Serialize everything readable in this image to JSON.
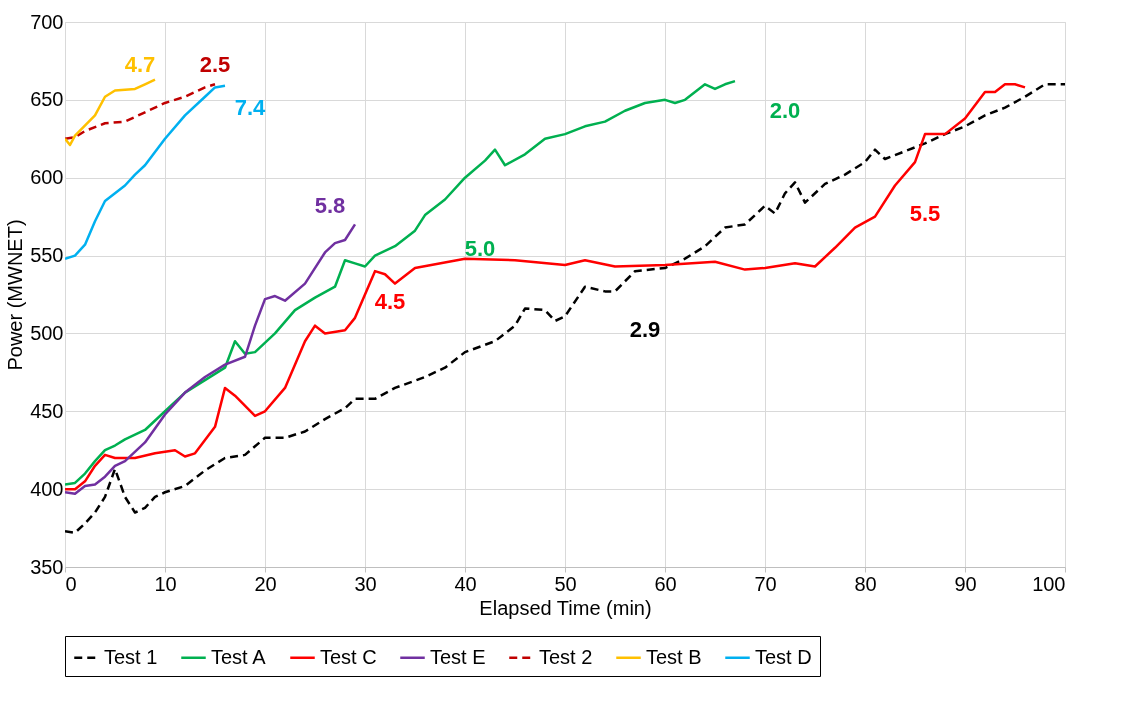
{
  "chart_data": {
    "type": "line",
    "xlabel": "Elapsed Time (min)",
    "ylabel": "Power (MWNET)",
    "xlim": [
      0,
      100
    ],
    "xticks": [
      0,
      10,
      20,
      30,
      40,
      50,
      60,
      70,
      80,
      90,
      100
    ],
    "ylim": [
      350,
      700
    ],
    "yticks": [
      350,
      400,
      450,
      500,
      550,
      600,
      650,
      700
    ],
    "grid": true,
    "legend": "bottom",
    "marker": "none",
    "series": [
      {
        "name": "Test 1",
        "color": "#000000",
        "line_style": "dashed",
        "x": [
          0,
          1,
          2,
          3,
          4,
          5,
          6,
          7,
          8,
          9,
          10,
          12,
          14,
          16,
          18,
          20,
          22,
          24,
          26,
          28,
          29,
          31,
          33,
          36,
          38,
          40,
          43,
          45,
          46,
          48,
          49,
          50,
          52,
          54,
          55,
          57,
          60,
          62,
          64,
          66,
          68,
          70,
          71,
          72,
          73,
          74,
          76,
          78,
          80,
          81,
          82,
          84,
          86,
          88,
          90,
          92,
          94,
          96,
          98,
          100
        ],
        "values": [
          373,
          372,
          378,
          385,
          395,
          413,
          395,
          385,
          388,
          395,
          398,
          402,
          412,
          420,
          422,
          433,
          433,
          437,
          445,
          452,
          458,
          458,
          465,
          472,
          478,
          488,
          495,
          505,
          516,
          515,
          508,
          511,
          530,
          527,
          527,
          540,
          542,
          548,
          556,
          568,
          570,
          582,
          577,
          590,
          597,
          584,
          596,
          602,
          610,
          618,
          612,
          617,
          622,
          628,
          633,
          640,
          645,
          652,
          660,
          660
        ]
      },
      {
        "name": "Test A",
        "color": "#00b050",
        "line_style": "solid",
        "x": [
          0,
          1,
          2,
          3,
          4,
          5,
          6,
          8,
          10,
          12,
          14,
          16,
          17,
          18,
          19,
          21,
          23,
          25,
          27,
          28,
          29,
          30,
          31,
          33,
          35,
          36,
          38,
          40,
          42,
          43,
          44,
          46,
          48,
          50,
          52,
          54,
          56,
          58,
          60,
          61,
          62,
          64,
          65,
          66,
          67
        ],
        "values": [
          403,
          404,
          410,
          418,
          425,
          428,
          432,
          438,
          450,
          462,
          470,
          478,
          495,
          487,
          488,
          500,
          515,
          523,
          530,
          547,
          545,
          543,
          550,
          556,
          566,
          576,
          586,
          600,
          611,
          618,
          608,
          615,
          625,
          628,
          633,
          636,
          643,
          648,
          650,
          648,
          650,
          660,
          657,
          660,
          662
        ]
      },
      {
        "name": "Test C",
        "color": "#ff0000",
        "line_style": "solid",
        "x": [
          0,
          1,
          2,
          3,
          4,
          5,
          7,
          9,
          11,
          12,
          13,
          15,
          16,
          17,
          19,
          20,
          22,
          24,
          25,
          26,
          28,
          29,
          31,
          32,
          33,
          35,
          40,
          45,
          50,
          52,
          55,
          60,
          65,
          68,
          70,
          73,
          75,
          77,
          79,
          81,
          83,
          85,
          86,
          88,
          90,
          92,
          93,
          94,
          95,
          96
        ],
        "values": [
          400,
          400,
          405,
          415,
          422,
          420,
          420,
          423,
          425,
          421,
          423,
          440,
          465,
          460,
          447,
          450,
          465,
          495,
          505,
          500,
          502,
          510,
          540,
          538,
          532,
          542,
          548,
          547,
          544,
          547,
          543,
          544,
          546,
          541,
          542,
          545,
          543,
          555,
          568,
          575,
          595,
          610,
          628,
          628,
          638,
          655,
          655,
          660,
          660,
          658
        ]
      },
      {
        "name": "Test E",
        "color": "#7030a0",
        "line_style": "solid",
        "x": [
          0,
          1,
          2,
          3,
          4,
          5,
          6,
          8,
          10,
          12,
          14,
          16,
          18,
          19,
          20,
          21,
          22,
          24,
          26,
          27,
          28,
          29
        ],
        "values": [
          398,
          397,
          402,
          403,
          408,
          415,
          418,
          430,
          448,
          462,
          472,
          480,
          485,
          505,
          522,
          524,
          521,
          532,
          552,
          558,
          560,
          570
        ]
      },
      {
        "name": "Test 2",
        "color": "#c00000",
        "line_style": "dashed",
        "x": [
          0,
          1,
          2,
          4,
          6,
          8,
          10,
          12,
          14,
          15
        ],
        "values": [
          625,
          626,
          630,
          635,
          636,
          642,
          648,
          652,
          658,
          660
        ]
      },
      {
        "name": "Test B",
        "color": "#ffc000",
        "line_style": "solid",
        "x": [
          0,
          0.5,
          1,
          3,
          4,
          5,
          7,
          8,
          9
        ],
        "values": [
          625,
          621,
          627,
          640,
          652,
          656,
          657,
          660,
          663
        ]
      },
      {
        "name": "Test D",
        "color": "#00b0f0",
        "line_style": "solid",
        "x": [
          0,
          1,
          2,
          3,
          4,
          5,
          6,
          7,
          8,
          10,
          12,
          14,
          15,
          16
        ],
        "values": [
          548,
          550,
          557,
          572,
          585,
          590,
          595,
          602,
          608,
          625,
          640,
          652,
          658,
          659
        ]
      }
    ],
    "annotations": [
      {
        "text": "4.7",
        "x": 8,
        "y": 660
      },
      {
        "text": "2.5",
        "x": 14,
        "y": 658
      },
      {
        "text": "7.4",
        "x": 16,
        "y": 659
      },
      {
        "text": "5.8",
        "x": 28,
        "y": 560
      },
      {
        "text": "5.0",
        "x": 36,
        "y": 576
      },
      {
        "text": "2.0",
        "x": 66,
        "y": 660
      },
      {
        "text": "4.5",
        "x": 31,
        "y": 540
      },
      {
        "text": "2.9",
        "x": 55,
        "y": 527
      },
      {
        "text": "5.5",
        "x": 83,
        "y": 595
      }
    ]
  }
}
